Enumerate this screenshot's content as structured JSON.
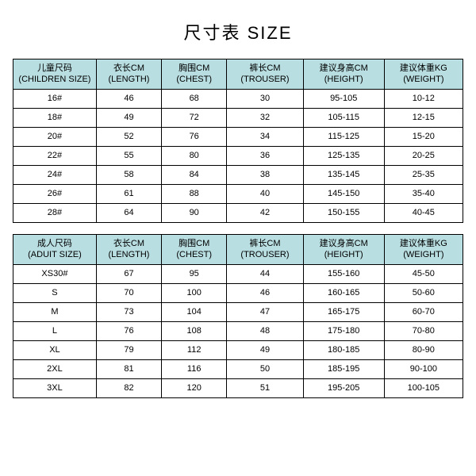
{
  "title": "尺寸表 SIZE",
  "colors": {
    "header_bg": "#b9dee1",
    "border": "#000000",
    "text": "#000000",
    "background": "#ffffff"
  },
  "children_table": {
    "columns": [
      {
        "zh": "儿童尺码",
        "en": "(CHILDREN SIZE)"
      },
      {
        "zh": "衣长CM",
        "en": "(LENGTH)"
      },
      {
        "zh": "胸围CM",
        "en": "(CHEST)"
      },
      {
        "zh": "裤长CM",
        "en": "(TROUSER)"
      },
      {
        "zh": "建议身高CM",
        "en": "(HEIGHT)"
      },
      {
        "zh": "建议体重KG",
        "en": "(WEIGHT)"
      }
    ],
    "rows": [
      [
        "16#",
        "46",
        "68",
        "30",
        "95-105",
        "10-12"
      ],
      [
        "18#",
        "49",
        "72",
        "32",
        "105-115",
        "12-15"
      ],
      [
        "20#",
        "52",
        "76",
        "34",
        "115-125",
        "15-20"
      ],
      [
        "22#",
        "55",
        "80",
        "36",
        "125-135",
        "20-25"
      ],
      [
        "24#",
        "58",
        "84",
        "38",
        "135-145",
        "25-35"
      ],
      [
        "26#",
        "61",
        "88",
        "40",
        "145-150",
        "35-40"
      ],
      [
        "28#",
        "64",
        "90",
        "42",
        "150-155",
        "40-45"
      ]
    ]
  },
  "adult_table": {
    "columns": [
      {
        "zh": "成人尺码",
        "en": "(ADUIT SIZE)"
      },
      {
        "zh": "衣长CM",
        "en": "(LENGTH)"
      },
      {
        "zh": "胸围CM",
        "en": "(CHEST)"
      },
      {
        "zh": "裤长CM",
        "en": "(TROUSER)"
      },
      {
        "zh": "建议身高CM",
        "en": "(HEIGHT)"
      },
      {
        "zh": "建议体重KG",
        "en": "(WEIGHT)"
      }
    ],
    "rows": [
      [
        "XS30#",
        "67",
        "95",
        "44",
        "155-160",
        "45-50"
      ],
      [
        "S",
        "70",
        "100",
        "46",
        "160-165",
        "50-60"
      ],
      [
        "M",
        "73",
        "104",
        "47",
        "165-175",
        "60-70"
      ],
      [
        "L",
        "76",
        "108",
        "48",
        "175-180",
        "70-80"
      ],
      [
        "XL",
        "79",
        "112",
        "49",
        "180-185",
        "80-90"
      ],
      [
        "2XL",
        "81",
        "116",
        "50",
        "185-195",
        "90-100"
      ],
      [
        "3XL",
        "82",
        "120",
        "51",
        "195-205",
        "100-105"
      ]
    ]
  }
}
